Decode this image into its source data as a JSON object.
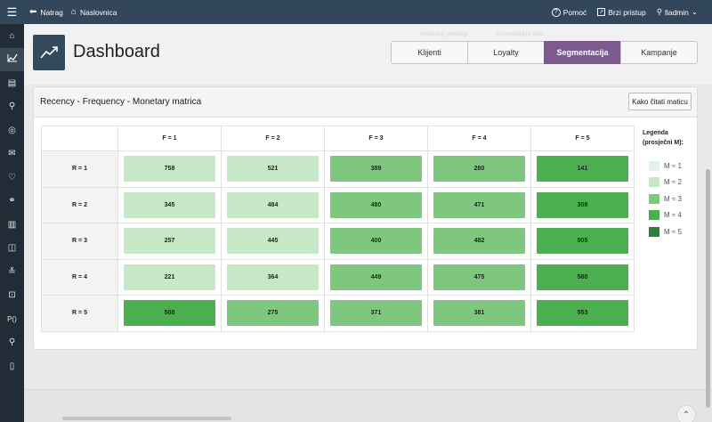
{
  "topbar": {
    "menu_icon": "hamburger-icon",
    "back_label": "Natrag",
    "home_label": "Naslovnica",
    "help_label": "Pomoć",
    "quick_access_label": "Brzi pristup",
    "user_label": "lladmin"
  },
  "sidebar": {
    "icons": [
      "home-icon",
      "chart-icon",
      "document-icon",
      "user-search-icon",
      "target-icon",
      "mail-icon",
      "heart-icon",
      "link-icon",
      "bar-chart-icon",
      "gamepad-icon",
      "sliders-icon",
      "lock-icon",
      "p-bracket-icon",
      "user-plus-icon",
      "clipboard-icon"
    ],
    "p_label": "P()"
  },
  "header": {
    "title": "Dashboard",
    "ghost_text": [
      "Povećanje potrošnje",
      "Komunikacijski plan"
    ],
    "tabs": [
      {
        "label": "Klijenti",
        "active": false
      },
      {
        "label": "Loyalty",
        "active": false
      },
      {
        "label": "Segmentacija",
        "active": true
      },
      {
        "label": "Kampanje",
        "active": false
      }
    ]
  },
  "card": {
    "title": "Recency - Frequency - Monetary matrica",
    "help_button": "Kako čitati maticu",
    "column_headers": [
      "F = 1",
      "F = 2",
      "F = 3",
      "F = 4",
      "F = 5"
    ],
    "rows": [
      {
        "label": "R = 1",
        "values": [
          "758",
          "521",
          "389",
          "280",
          "141"
        ],
        "levels": [
          2,
          2,
          3,
          3,
          4
        ]
      },
      {
        "label": "R = 2",
        "values": [
          "345",
          "484",
          "480",
          "471",
          "309"
        ],
        "levels": [
          2,
          2,
          3,
          3,
          4
        ]
      },
      {
        "label": "R = 3",
        "values": [
          "257",
          "445",
          "400",
          "482",
          "505"
        ],
        "levels": [
          2,
          2,
          3,
          3,
          4
        ]
      },
      {
        "label": "R = 4",
        "values": [
          "221",
          "364",
          "449",
          "475",
          "580"
        ],
        "levels": [
          2,
          2,
          3,
          3,
          4
        ]
      },
      {
        "label": "R = 5",
        "values": [
          "508",
          "275",
          "371",
          "381",
          "553"
        ],
        "levels": [
          4,
          3,
          3,
          3,
          4
        ]
      }
    ]
  },
  "legend": {
    "title_line1": "Legenda",
    "title_line2": "(prosječni M):",
    "items": [
      {
        "label": "M ≈ 1",
        "color": "#e4f3e4"
      },
      {
        "label": "M ≈ 2",
        "color": "#c6e8c6"
      },
      {
        "label": "M ≈ 3",
        "color": "#7fc77f"
      },
      {
        "label": "M ≈ 4",
        "color": "#4bae4f"
      },
      {
        "label": "M ≈ 5",
        "color": "#2f7f35"
      }
    ]
  },
  "colors": {
    "level_2": "#c6e8c6",
    "level_3": "#7fc77f",
    "level_4": "#4bae4f",
    "active_tab": "#7c5a90",
    "topbar": "#33475b",
    "sidebar": "#222c36"
  }
}
